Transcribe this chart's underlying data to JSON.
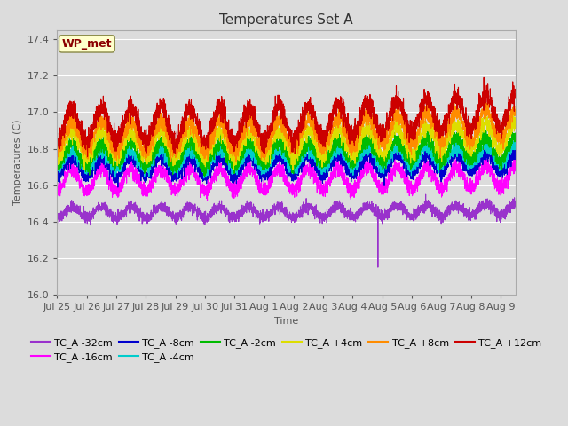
{
  "title": "Temperatures Set A",
  "xlabel": "Time",
  "ylabel": "Temperatures (C)",
  "ylim": [
    16.0,
    17.45
  ],
  "xlim_start": 0,
  "xlim_end": 15.5,
  "axes_bg": "#dcdcdc",
  "fig_bg": "#dcdcdc",
  "wp_met_label": "WP_met",
  "wp_met_color": "#8b0000",
  "wp_met_bg": "#ffffcc",
  "series": [
    {
      "label": "TC_A -32cm",
      "color": "#9932CC",
      "base": 16.45,
      "amp": 0.03,
      "trend": 0.002,
      "noise_scale": 0.015
    },
    {
      "label": "TC_A -16cm",
      "color": "#FF00FF",
      "base": 16.63,
      "amp": 0.06,
      "trend": 0.002,
      "noise_scale": 0.02
    },
    {
      "label": "TC_A -8cm",
      "color": "#0000CD",
      "base": 16.7,
      "amp": 0.05,
      "trend": 0.003,
      "noise_scale": 0.018
    },
    {
      "label": "TC_A -4cm",
      "color": "#00CCCC",
      "base": 16.74,
      "amp": 0.05,
      "trend": 0.003,
      "noise_scale": 0.018
    },
    {
      "label": "TC_A -2cm",
      "color": "#00BB00",
      "base": 16.77,
      "amp": 0.06,
      "trend": 0.004,
      "noise_scale": 0.02
    },
    {
      "label": "TC_A +4cm",
      "color": "#DDDD00",
      "base": 16.82,
      "amp": 0.07,
      "trend": 0.006,
      "noise_scale": 0.022
    },
    {
      "label": "TC_A +8cm",
      "color": "#FF8C00",
      "base": 16.87,
      "amp": 0.08,
      "trend": 0.008,
      "noise_scale": 0.025
    },
    {
      "label": "TC_A +12cm",
      "color": "#CC0000",
      "base": 16.93,
      "amp": 0.09,
      "trend": 0.01,
      "noise_scale": 0.028
    }
  ],
  "n_points": 3600,
  "spike_series": 0,
  "spike_index": 2520,
  "spike_value": 16.15,
  "grid_color": "#ffffff",
  "tick_label_color": "#555555",
  "title_fontsize": 11,
  "axis_label_fontsize": 8,
  "tick_fontsize": 8,
  "legend_fontsize": 8,
  "tick_positions": [
    0,
    1,
    2,
    3,
    4,
    5,
    6,
    7,
    8,
    9,
    10,
    11,
    12,
    13,
    14,
    15
  ],
  "tick_labels": [
    "Jul 25",
    "Jul 26",
    "Jul 27",
    "Jul 28",
    "Jul 29",
    "Jul 30",
    "Jul 31",
    "Aug 1",
    "Aug 2",
    "Aug 3",
    "Aug 4",
    "Aug 5",
    "Aug 6",
    "Aug 7",
    "Aug 8",
    "Aug 9"
  ],
  "yticks": [
    16.0,
    16.2,
    16.4,
    16.6,
    16.8,
    17.0,
    17.2,
    17.4
  ],
  "ytick_labels": [
    "16.0",
    "16.2",
    "16.4",
    "16.6",
    "16.8",
    "17.0",
    "17.2",
    "17.4"
  ]
}
